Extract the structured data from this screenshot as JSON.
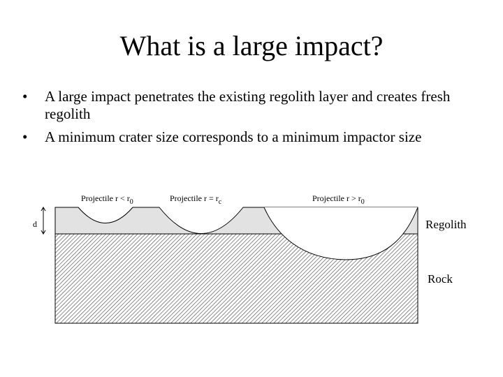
{
  "header": {
    "title": "What is a large impact?"
  },
  "bullets": [
    "A large impact penetrates the existing regolith layer and creates fresh regolith",
    "A minimum crater size corresponds to a minimum impactor size"
  ],
  "diagram": {
    "projectiles": [
      {
        "text": "Projectile r < r",
        "sub": "0"
      },
      {
        "text": "Projectile r = r",
        "sub": "c"
      },
      {
        "text": "Projectile r > r",
        "sub": "0"
      }
    ],
    "depth_label": "d",
    "layers": [
      "Regolith",
      "Rock"
    ]
  }
}
